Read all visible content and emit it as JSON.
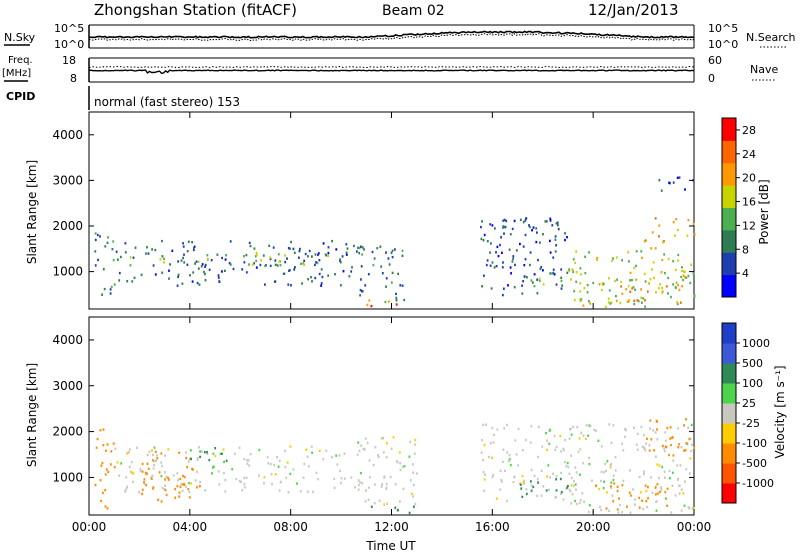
{
  "header": {
    "station": "Zhongshan Station (fitACF)",
    "beam": "Beam 02",
    "date": "12/Jan/2013"
  },
  "aux_panels": {
    "nsky_label": "N.Sky",
    "nsearch_label": "N.Search",
    "freq_label": "Freq.",
    "freq_unit": "[MHz]",
    "nave_label": "Nave",
    "cpid_label": "CPID",
    "cpid_text": "normal (fast stereo) 153",
    "noise_ticks_left": [
      "10^5",
      "10^0"
    ],
    "noise_ticks_right": [
      "10^5",
      "10^0"
    ],
    "freq_ticks_left": [
      "18",
      "8"
    ],
    "nave_ticks_right": [
      "60",
      "0"
    ]
  },
  "colors": {
    "power_scale": [
      "#0000ff",
      "#1f3fb0",
      "#2e7d52",
      "#4caf50",
      "#c8d400",
      "#ff9900",
      "#ff6600",
      "#ff0000"
    ],
    "velocity_scale": [
      "#1f3fc8",
      "#3c5ad8",
      "#2e8b57",
      "#4cd44c",
      "#c8c8c0",
      "#ffcc00",
      "#ff8c00",
      "#ff5500",
      "#ff0000"
    ],
    "grey_scatter": "#c0c0b8"
  },
  "chart_data": [
    {
      "type": "heatmap",
      "title": "",
      "xlabel": "Time UT",
      "ylabel": "Slant Range [km]",
      "xlim": [
        "00:00",
        "24:00"
      ],
      "ylim": [
        180,
        4500
      ],
      "x_ticks": [
        "00:00",
        "04:00",
        "08:00",
        "12:00",
        "16:00",
        "20:00",
        "00:00"
      ],
      "y_ticks": [
        1000,
        2000,
        3000,
        4000
      ],
      "colorbar": {
        "label": "Power [dB]",
        "ticks": [
          4,
          8,
          12,
          16,
          20,
          24,
          28
        ],
        "range": [
          0,
          30
        ]
      },
      "regions": [
        {
          "t0": 0.2,
          "t1": 1.0,
          "r0": 300,
          "r1": 2100,
          "value": 10
        },
        {
          "t0": 1.0,
          "t1": 10.5,
          "r0": 700,
          "r1": 1700,
          "value": 7
        },
        {
          "t0": 1.5,
          "t1": 9.5,
          "r0": 1150,
          "r1": 1450,
          "value": 14
        },
        {
          "t0": 10.5,
          "t1": 12.5,
          "r0": 300,
          "r1": 1600,
          "value": 8
        },
        {
          "t0": 11.0,
          "t1": 13.0,
          "r0": 250,
          "r1": 400,
          "value": 24
        },
        {
          "t0": 15.5,
          "t1": 19.0,
          "r0": 500,
          "r1": 2200,
          "value": 6
        },
        {
          "t0": 17.5,
          "t1": 19.5,
          "r0": 700,
          "r1": 1000,
          "value": 14
        },
        {
          "t0": 19.0,
          "t1": 24.0,
          "r0": 250,
          "r1": 1500,
          "value": 16
        },
        {
          "t0": 21.0,
          "t1": 23.5,
          "r0": 300,
          "r1": 800,
          "value": 22
        },
        {
          "t0": 22.0,
          "t1": 24.0,
          "r0": 1500,
          "r1": 2200,
          "value": 20
        },
        {
          "t0": 22.5,
          "t1": 24.0,
          "r0": 2700,
          "r1": 3100,
          "value": 6
        }
      ]
    },
    {
      "type": "heatmap",
      "title": "",
      "xlabel": "Time UT",
      "ylabel": "Slant Range [km]",
      "xlim": [
        "00:00",
        "24:00"
      ],
      "ylim": [
        180,
        4500
      ],
      "x_ticks": [
        "00:00",
        "04:00",
        "08:00",
        "12:00",
        "16:00",
        "20:00",
        "00:00"
      ],
      "y_ticks": [
        1000,
        2000,
        3000,
        4000
      ],
      "colorbar": {
        "label": "Velocity [m s⁻¹]",
        "ticks": [
          1000,
          500,
          100,
          25,
          -25,
          -100,
          -500,
          -1000
        ]
      },
      "regions": [
        {
          "t0": 0.2,
          "t1": 1.0,
          "r0": 300,
          "r1": 2100,
          "value": -150
        },
        {
          "t0": 1.0,
          "t1": 10.5,
          "r0": 700,
          "r1": 1700,
          "value": 0
        },
        {
          "t0": 2.0,
          "t1": 4.5,
          "r0": 500,
          "r1": 1600,
          "value": -200
        },
        {
          "t0": 4.0,
          "t1": 5.5,
          "r0": 1200,
          "r1": 1700,
          "value": 60
        },
        {
          "t0": 10.5,
          "t1": 13.0,
          "r0": 400,
          "r1": 2000,
          "value": 0
        },
        {
          "t0": 11.0,
          "t1": 13.0,
          "r0": 250,
          "r1": 400,
          "value": 200
        },
        {
          "t0": 15.5,
          "t1": 19.5,
          "r0": 500,
          "r1": 2200,
          "value": 0
        },
        {
          "t0": 17.0,
          "t1": 19.0,
          "r0": 600,
          "r1": 1000,
          "value": 150
        },
        {
          "t0": 19.0,
          "t1": 24.0,
          "r0": 250,
          "r1": 2200,
          "value": 0
        },
        {
          "t0": 20.0,
          "t1": 23.0,
          "r0": 300,
          "r1": 900,
          "value": -150
        },
        {
          "t0": 22.0,
          "t1": 24.0,
          "r0": 1500,
          "r1": 2300,
          "value": -200
        }
      ]
    }
  ]
}
